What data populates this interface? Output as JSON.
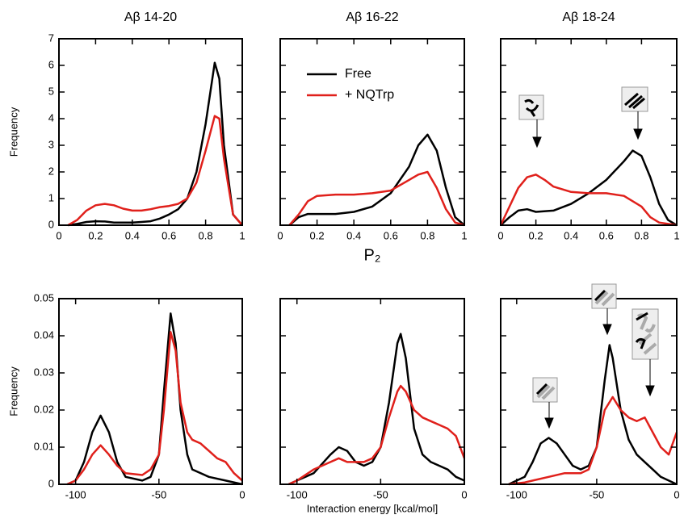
{
  "chart_data": [
    {
      "type": "line",
      "title": "Aβ 14-20",
      "ylabel": "Frequency",
      "xlim": [
        0,
        1
      ],
      "ylim": [
        0,
        7
      ],
      "xticks": [
        0,
        0.2,
        0.4,
        0.6,
        0.8,
        1
      ],
      "yticks": [
        0,
        1,
        2,
        3,
        4,
        5,
        6,
        7
      ],
      "ytick_labels": true,
      "series": [
        {
          "color": "#000000",
          "x": [
            0.05,
            0.1,
            0.15,
            0.2,
            0.25,
            0.3,
            0.35,
            0.4,
            0.45,
            0.5,
            0.55,
            0.6,
            0.65,
            0.7,
            0.75,
            0.8,
            0.85,
            0.875,
            0.9,
            0.95,
            1.0
          ],
          "values": [
            0,
            0.05,
            0.12,
            0.15,
            0.14,
            0.1,
            0.1,
            0.1,
            0.12,
            0.15,
            0.25,
            0.4,
            0.6,
            1.0,
            2.0,
            3.8,
            6.1,
            5.5,
            3.0,
            0.4,
            0
          ]
        },
        {
          "color": "#e0201b",
          "x": [
            0.05,
            0.1,
            0.15,
            0.2,
            0.25,
            0.3,
            0.35,
            0.4,
            0.45,
            0.5,
            0.55,
            0.6,
            0.65,
            0.7,
            0.75,
            0.8,
            0.85,
            0.875,
            0.9,
            0.95,
            1.0
          ],
          "values": [
            0,
            0.2,
            0.55,
            0.75,
            0.8,
            0.75,
            0.62,
            0.55,
            0.55,
            0.6,
            0.68,
            0.72,
            0.8,
            1.0,
            1.6,
            2.8,
            4.1,
            4.0,
            2.5,
            0.4,
            0
          ]
        }
      ]
    },
    {
      "type": "line",
      "title": "Aβ 16-22",
      "xlabel": "P₂",
      "xlim": [
        0,
        1
      ],
      "ylim": [
        0,
        7
      ],
      "xticks": [
        0,
        0.2,
        0.4,
        0.6,
        0.8,
        1
      ],
      "yticks": [
        0,
        1,
        2,
        3,
        4,
        5,
        6,
        7
      ],
      "ytick_labels": false,
      "series": [
        {
          "name": "Free",
          "color": "#000000",
          "x": [
            0.05,
            0.1,
            0.15,
            0.2,
            0.3,
            0.4,
            0.5,
            0.6,
            0.7,
            0.75,
            0.8,
            0.85,
            0.9,
            0.95,
            1.0
          ],
          "values": [
            0,
            0.3,
            0.42,
            0.42,
            0.42,
            0.5,
            0.7,
            1.2,
            2.2,
            3.0,
            3.4,
            2.8,
            1.4,
            0.3,
            0
          ]
        },
        {
          "name": "+ NQTrp",
          "color": "#e0201b",
          "x": [
            0.05,
            0.1,
            0.15,
            0.2,
            0.3,
            0.4,
            0.5,
            0.6,
            0.7,
            0.75,
            0.8,
            0.85,
            0.9,
            0.95,
            1.0
          ],
          "values": [
            0,
            0.4,
            0.9,
            1.1,
            1.15,
            1.15,
            1.2,
            1.3,
            1.7,
            1.9,
            2.0,
            1.4,
            0.6,
            0.1,
            0
          ]
        }
      ]
    },
    {
      "type": "line",
      "title": "Aβ 18-24",
      "xlim": [
        0,
        1
      ],
      "ylim": [
        0,
        7
      ],
      "xticks": [
        0,
        0.2,
        0.4,
        0.6,
        0.8,
        1
      ],
      "yticks": [
        0,
        1,
        2,
        3,
        4,
        5,
        6,
        7
      ],
      "ytick_labels": false,
      "series": [
        {
          "color": "#000000",
          "x": [
            0,
            0.05,
            0.1,
            0.15,
            0.2,
            0.3,
            0.4,
            0.5,
            0.6,
            0.7,
            0.75,
            0.8,
            0.85,
            0.9,
            0.95,
            1.0
          ],
          "values": [
            0,
            0.3,
            0.55,
            0.6,
            0.5,
            0.55,
            0.8,
            1.2,
            1.7,
            2.4,
            2.8,
            2.6,
            1.8,
            0.8,
            0.2,
            0
          ]
        },
        {
          "color": "#e0201b",
          "x": [
            0,
            0.05,
            0.1,
            0.15,
            0.2,
            0.25,
            0.3,
            0.4,
            0.5,
            0.6,
            0.7,
            0.8,
            0.85,
            0.9,
            1.0
          ],
          "values": [
            0,
            0.7,
            1.4,
            1.8,
            1.9,
            1.7,
            1.45,
            1.25,
            1.2,
            1.2,
            1.1,
            0.7,
            0.3,
            0.1,
            0
          ]
        }
      ]
    },
    {
      "type": "line",
      "ylabel": "Frequency",
      "xlim": [
        -110,
        0
      ],
      "ylim": [
        0,
        0.05
      ],
      "xticks": [
        -100,
        -50,
        0
      ],
      "yticks": [
        0,
        0.01,
        0.02,
        0.03,
        0.04,
        0.05
      ],
      "ytick_labels": true,
      "series": [
        {
          "color": "#000000",
          "x": [
            -105,
            -100,
            -95,
            -90,
            -85,
            -80,
            -75,
            -70,
            -60,
            -55,
            -50,
            -47,
            -43,
            -40,
            -37,
            -33,
            -30,
            -20,
            -10,
            0
          ],
          "values": [
            0,
            0.001,
            0.006,
            0.014,
            0.0185,
            0.014,
            0.006,
            0.002,
            0.001,
            0.002,
            0.008,
            0.025,
            0.046,
            0.038,
            0.02,
            0.008,
            0.004,
            0.002,
            0.001,
            0
          ]
        },
        {
          "color": "#e0201b",
          "x": [
            -105,
            -100,
            -95,
            -90,
            -85,
            -80,
            -75,
            -70,
            -60,
            -55,
            -50,
            -47,
            -43,
            -40,
            -37,
            -33,
            -30,
            -25,
            -20,
            -15,
            -10,
            -5,
            0
          ],
          "values": [
            0,
            0.001,
            0.004,
            0.008,
            0.0105,
            0.008,
            0.005,
            0.003,
            0.0025,
            0.004,
            0.008,
            0.02,
            0.041,
            0.036,
            0.022,
            0.014,
            0.012,
            0.011,
            0.009,
            0.007,
            0.006,
            0.003,
            0.001
          ]
        }
      ]
    },
    {
      "type": "line",
      "xlabel": "Interaction energy [kcal/mol]",
      "xlim": [
        -110,
        0
      ],
      "ylim": [
        0,
        0.05
      ],
      "xticks": [
        -100,
        -50,
        0
      ],
      "yticks": [
        0,
        0.01,
        0.02,
        0.03,
        0.04,
        0.05
      ],
      "ytick_labels": false,
      "series": [
        {
          "color": "#000000",
          "x": [
            -105,
            -100,
            -90,
            -80,
            -75,
            -70,
            -65,
            -60,
            -55,
            -50,
            -45,
            -40,
            -38,
            -35,
            -30,
            -25,
            -20,
            -15,
            -10,
            -5,
            0
          ],
          "values": [
            0,
            0.001,
            0.003,
            0.008,
            0.01,
            0.009,
            0.006,
            0.005,
            0.006,
            0.01,
            0.022,
            0.038,
            0.0405,
            0.034,
            0.015,
            0.008,
            0.006,
            0.005,
            0.004,
            0.002,
            0.001
          ]
        },
        {
          "color": "#e0201b",
          "x": [
            -105,
            -100,
            -90,
            -80,
            -75,
            -70,
            -60,
            -55,
            -50,
            -45,
            -40,
            -38,
            -35,
            -30,
            -25,
            -20,
            -15,
            -10,
            -5,
            0
          ],
          "values": [
            0,
            0.001,
            0.004,
            0.006,
            0.007,
            0.006,
            0.006,
            0.007,
            0.01,
            0.018,
            0.025,
            0.0265,
            0.025,
            0.02,
            0.018,
            0.017,
            0.016,
            0.015,
            0.013,
            0.007
          ]
        }
      ]
    },
    {
      "type": "line",
      "xlim": [
        -110,
        0
      ],
      "ylim": [
        0,
        0.05
      ],
      "xticks": [
        -100,
        -50,
        0
      ],
      "yticks": [
        0,
        0.01,
        0.02,
        0.03,
        0.04,
        0.05
      ],
      "ytick_labels": false,
      "series": [
        {
          "color": "#000000",
          "x": [
            -105,
            -95,
            -90,
            -85,
            -80,
            -75,
            -70,
            -65,
            -60,
            -55,
            -50,
            -45,
            -42,
            -40,
            -35,
            -30,
            -25,
            -20,
            -15,
            -10,
            0
          ],
          "values": [
            0,
            0.002,
            0.006,
            0.011,
            0.0125,
            0.011,
            0.008,
            0.005,
            0.004,
            0.005,
            0.01,
            0.028,
            0.0375,
            0.034,
            0.02,
            0.012,
            0.008,
            0.006,
            0.004,
            0.002,
            0
          ]
        },
        {
          "color": "#e0201b",
          "x": [
            -105,
            -95,
            -90,
            -80,
            -70,
            -60,
            -55,
            -50,
            -45,
            -40,
            -35,
            -30,
            -25,
            -20,
            -15,
            -10,
            -5,
            0
          ],
          "values": [
            0,
            0.0005,
            0.001,
            0.002,
            0.003,
            0.003,
            0.004,
            0.01,
            0.02,
            0.0235,
            0.02,
            0.018,
            0.017,
            0.018,
            0.014,
            0.01,
            0.008,
            0.014
          ]
        }
      ]
    }
  ]
}
